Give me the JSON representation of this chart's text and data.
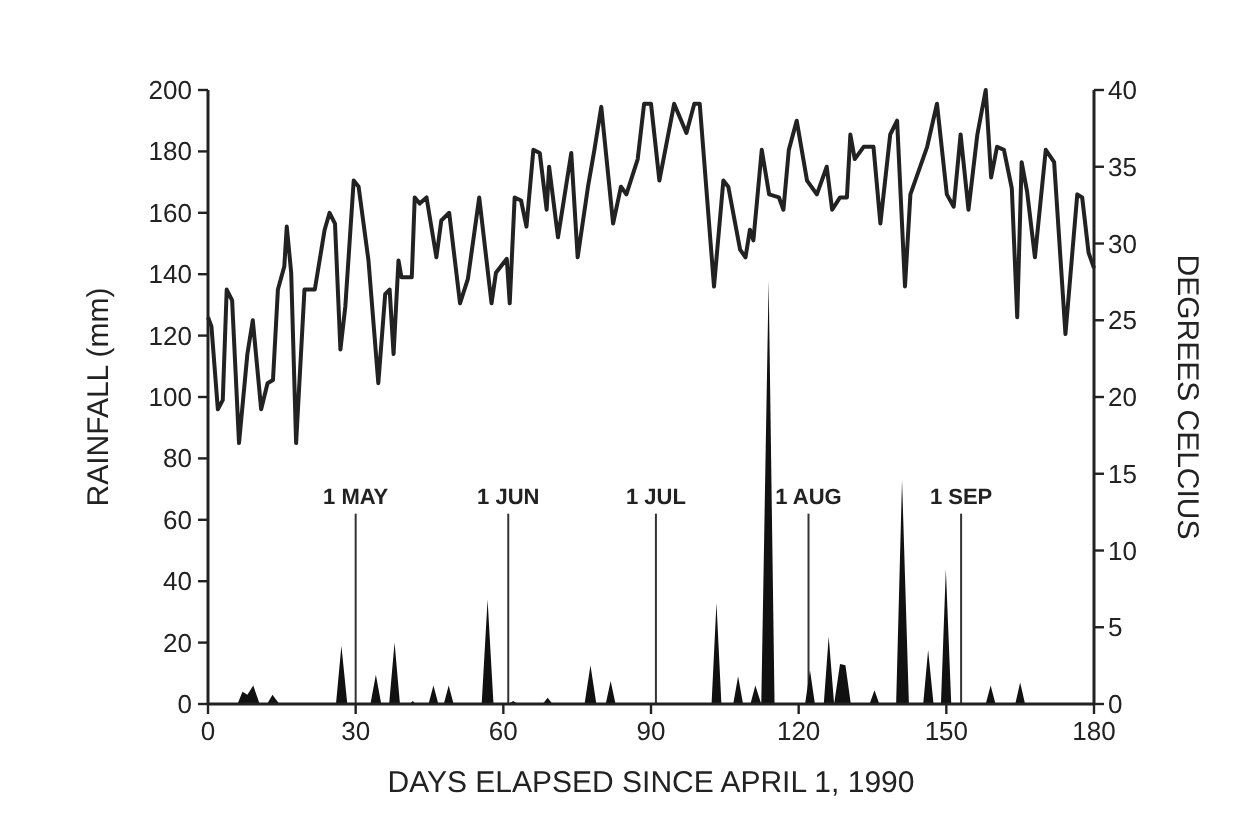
{
  "chart_data": {
    "type": "line",
    "xlabel": "DAYS ELAPSED SINCE APRIL 1, 1990",
    "ylabel": "RAINFALL (mm)",
    "y2label": "DEGREES CELCIUS",
    "xlim": [
      0,
      180
    ],
    "xticks": [
      0,
      30,
      60,
      90,
      120,
      150,
      180
    ],
    "ylim": [
      0,
      200
    ],
    "yticks": [
      0,
      20,
      40,
      60,
      80,
      100,
      120,
      140,
      160,
      180,
      200
    ],
    "y2lim": [
      0,
      40
    ],
    "y2ticks": [
      0,
      5,
      10,
      15,
      20,
      25,
      30,
      35,
      40
    ],
    "grid": false,
    "marker": "none",
    "line_style": "solid",
    "ref_lines": [
      {
        "axis": "x",
        "value": 30,
        "label": "1 MAY"
      },
      {
        "axis": "x",
        "value": 61,
        "label": "1 JUN"
      },
      {
        "axis": "x",
        "value": 91,
        "label": "1 JUL"
      },
      {
        "axis": "x",
        "value": 122,
        "label": "1 AUG"
      },
      {
        "axis": "x",
        "value": 153,
        "label": "1 SEP"
      }
    ],
    "series": [
      {
        "type": "area",
        "color": "#111111",
        "axis": "y",
        "x": [
          0,
          6,
          7,
          8,
          9.2,
          10.5,
          12,
          13.1,
          14.5,
          26,
          27.1,
          28.3,
          33,
          34.1,
          35.2,
          36.8,
          37.9,
          39,
          41,
          41.6,
          42.2,
          44.8,
          45.8,
          46.8,
          47.9,
          48.9,
          49.9,
          55.6,
          56.8,
          58,
          61,
          62,
          63,
          68,
          69,
          70,
          76.5,
          77.7,
          78.9,
          80.8,
          81.8,
          82.8,
          102.3,
          103.3,
          104.3,
          106.7,
          107.7,
          108.7,
          110.2,
          111.2,
          112.4,
          113.9,
          115.1,
          121.3,
          122.3,
          123.3,
          125.1,
          126.1,
          127.2,
          128.4,
          129.5,
          130.6,
          134.4,
          135.4,
          136.4,
          139.8,
          141,
          142.4,
          145.3,
          146.3,
          147.4,
          148.9,
          149.9,
          151,
          158,
          159,
          160,
          164,
          165,
          166,
          180
        ],
        "values": [
          0,
          0,
          4,
          3,
          6,
          0,
          0,
          3,
          0,
          0,
          19,
          0,
          0,
          9.5,
          0,
          0,
          20,
          0,
          0,
          1,
          0,
          0,
          6,
          0,
          0,
          6,
          0,
          0,
          34,
          0,
          0,
          1,
          0,
          0,
          2,
          0,
          0,
          12.6,
          0,
          0,
          7.5,
          0,
          0,
          33,
          0,
          0,
          9,
          0,
          0,
          6,
          0,
          138,
          0,
          0,
          11,
          0,
          0,
          22,
          0,
          13,
          12.6,
          0,
          0,
          4.5,
          0,
          0,
          73,
          0,
          0,
          17.6,
          0,
          0,
          44,
          0,
          0,
          6,
          0,
          0,
          7,
          0,
          0
        ]
      },
      {
        "type": "line",
        "color": "#222222",
        "axis": "y2",
        "x": [
          0,
          0.7,
          2,
          3,
          3.8,
          4.9,
          6.3,
          8,
          9.1,
          10.8,
          12.1,
          13.2,
          14.2,
          15.5,
          16,
          16.9,
          17.9,
          19.6,
          21.7,
          23.7,
          24.7,
          25.8,
          26.9,
          27.9,
          29.6,
          30.6,
          32.6,
          34.6,
          36,
          36.9,
          37.7,
          38.7,
          39.3,
          41.4,
          42,
          43,
          44.4,
          46.4,
          47.4,
          49,
          51.2,
          52.8,
          55.1,
          57.6,
          58.5,
          60.7,
          61.3,
          62.3,
          63.6,
          64.7,
          66.1,
          67.4,
          68.8,
          69.3,
          71.1,
          73.8,
          75.1,
          77.2,
          78.5,
          79.9,
          82.3,
          83.9,
          85,
          87.3,
          88.6,
          90,
          91.7,
          94.7,
          97.2,
          98.8,
          99.9,
          102.8,
          104.7,
          105.7,
          108.1,
          109.2,
          110.1,
          110.8,
          112.5,
          114,
          116,
          116.9,
          118,
          119.6,
          121.7,
          123.7,
          125.7,
          126.8,
          128.4,
          129.8,
          130.5,
          131.4,
          133.2,
          135.2,
          136.6,
          138.6,
          140,
          141.6,
          142.7,
          146.1,
          148.1,
          150.1,
          151.5,
          152.9,
          154.5,
          156.3,
          158,
          159.1,
          160.3,
          161.7,
          163.3,
          164.4,
          165.3,
          166.4,
          168,
          170.2,
          171.9,
          174.2,
          176.6,
          177.6,
          178.9,
          180
        ],
        "values": [
          25.2,
          24.6,
          19.2,
          19.8,
          27,
          26.3,
          17,
          22.8,
          25,
          19.2,
          20.9,
          21.1,
          27,
          28.5,
          31.1,
          28.1,
          17,
          27,
          27,
          30.9,
          32,
          31.3,
          23.1,
          25.9,
          34.1,
          33.7,
          28.9,
          20.9,
          26.7,
          27,
          22.8,
          28.9,
          27.8,
          27.8,
          33,
          32.6,
          33,
          29.1,
          31.5,
          32,
          26.1,
          27.7,
          33,
          26.1,
          28.1,
          29,
          26.1,
          33,
          32.8,
          31.1,
          36.1,
          35.9,
          32.2,
          35,
          30.4,
          35.9,
          29.1,
          33.7,
          36.1,
          38.9,
          31.3,
          33.7,
          33.2,
          35.5,
          39.1,
          39.1,
          34.1,
          39.1,
          37.2,
          39.1,
          39.1,
          27.2,
          34.1,
          33.7,
          29.6,
          29.1,
          30.9,
          30.2,
          36.1,
          33.2,
          33,
          32.2,
          36.1,
          38,
          34.1,
          33.2,
          35,
          32.2,
          33,
          33,
          37.1,
          35.5,
          36.3,
          36.3,
          31.3,
          37.1,
          38,
          27.2,
          33.2,
          36.3,
          39.1,
          33.2,
          32.4,
          37.1,
          32.2,
          37.1,
          40,
          34.3,
          36.3,
          36.1,
          33.6,
          25.2,
          35.3,
          33.4,
          29.1,
          36.1,
          35.3,
          24.1,
          33.2,
          33,
          29.4,
          28.4
        ]
      }
    ]
  }
}
